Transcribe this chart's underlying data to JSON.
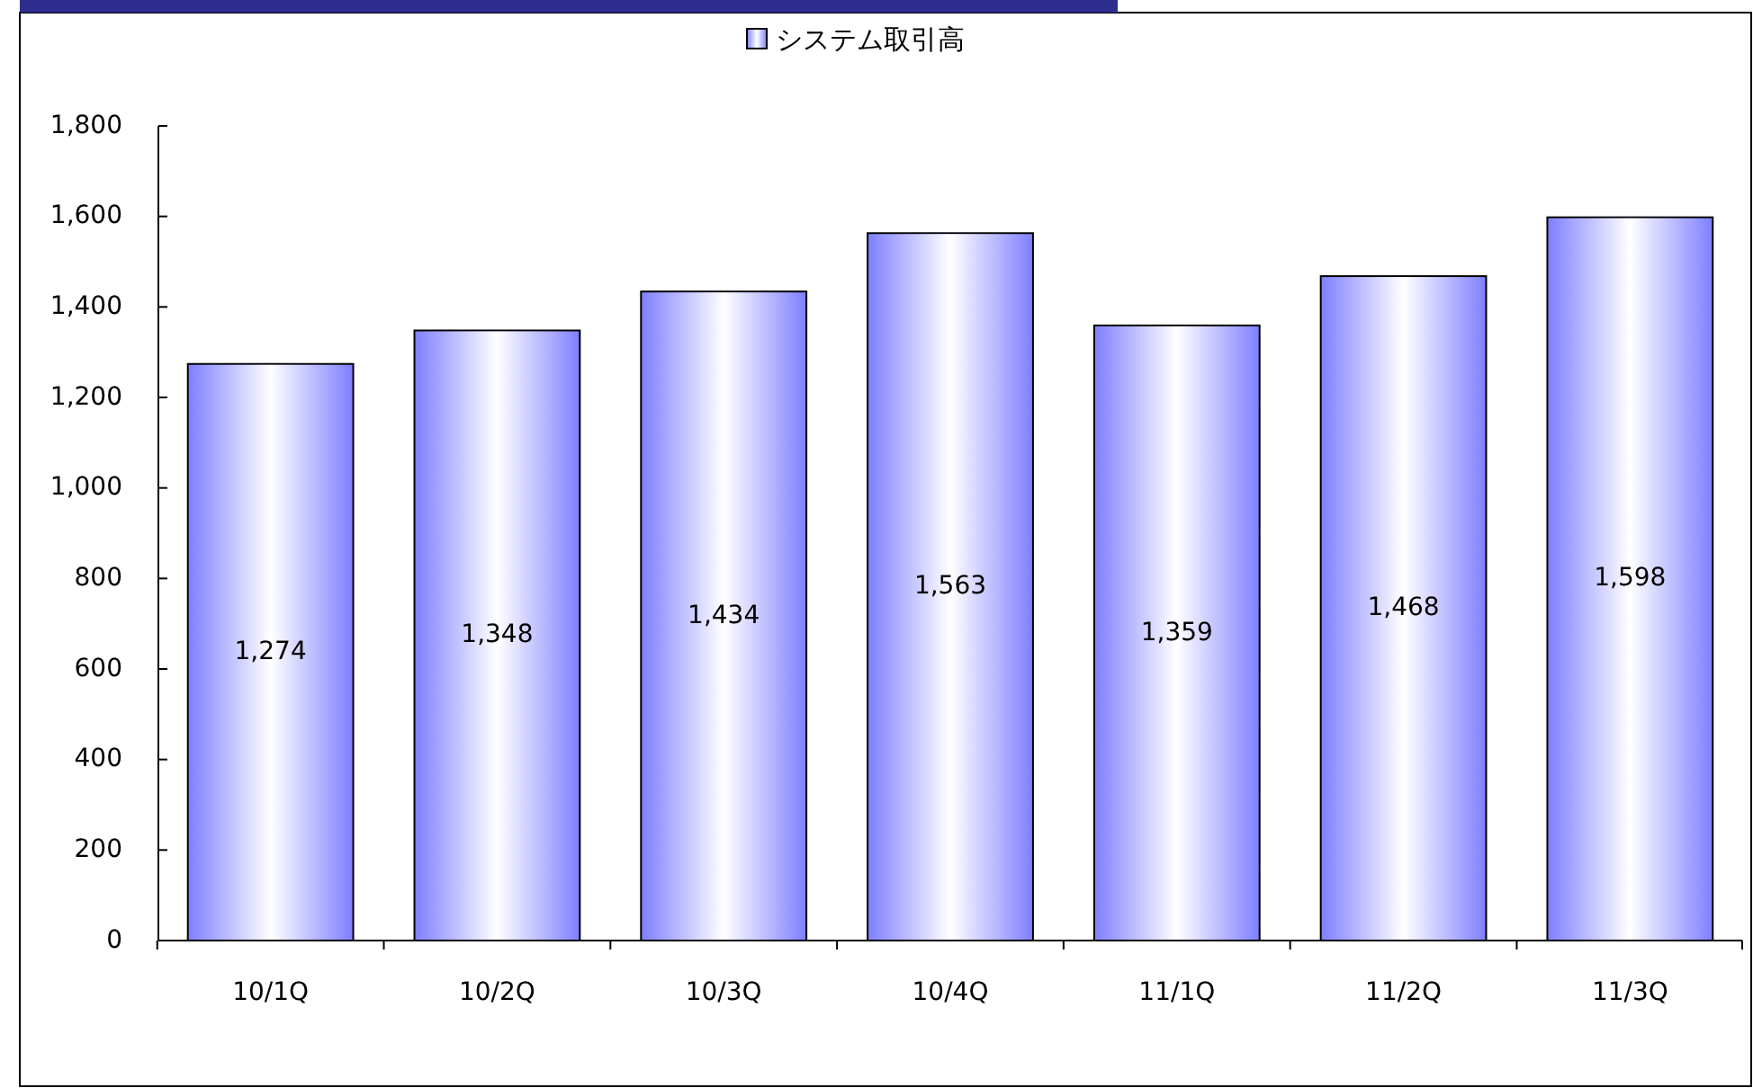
{
  "chart_data": {
    "type": "bar",
    "categories": [
      "10/1Q",
      "10/2Q",
      "10/3Q",
      "10/4Q",
      "11/1Q",
      "11/2Q",
      "11/3Q"
    ],
    "series": [
      {
        "name": "システム取引高",
        "color": "#8080ff",
        "values": [
          1274,
          1348,
          1434,
          1563,
          1359,
          1468,
          1598
        ],
        "value_labels": [
          "1,274",
          "1,348",
          "1,434",
          "1,563",
          "1,359",
          "1,468",
          "1,598"
        ]
      }
    ],
    "ylim": [
      0,
      1800
    ],
    "yticks": [
      0,
      200,
      400,
      600,
      800,
      {
        "value": 1000,
        "label": "1,000"
      },
      {
        "value": 1200,
        "label": "1,200"
      },
      {
        "value": 1400,
        "label": "1,400"
      },
      {
        "value": 1600,
        "label": "1,600"
      },
      {
        "value": 1800,
        "label": "1,800"
      }
    ],
    "grid": false,
    "legend": "top"
  }
}
